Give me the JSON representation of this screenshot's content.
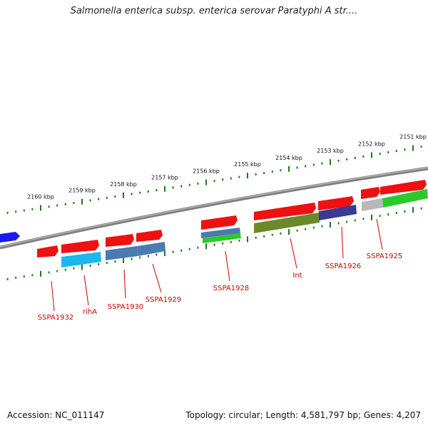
{
  "title": "Salmonella enterica subsp. enterica serovar Paratyphi A str....",
  "footer": {
    "accession": "Accession: NC_011147",
    "info": "Topology: circular; Length: 4,581,797 bp; Genes: 4,207"
  },
  "colors": {
    "backbone": "#808080",
    "ticks": "#1a7a1a",
    "label": "#cc0000",
    "gene_red": "#ee1111",
    "gene_blue": "#1a1aee",
    "cyan": "#1ab8ee",
    "steelblue": "#4a7ab0",
    "olive": "#6a8a2a",
    "indigo": "#3a3a90",
    "green": "#2aca2a",
    "grey": "#b8b8b8"
  },
  "scale_labels": [
    "2160 kbp",
    "2159 kbp",
    "2158 kbp",
    "2157 kbp",
    "2156 kbp",
    "2155 kbp",
    "2154 kbp",
    "2153 kbp",
    "2152 kbp",
    "2151 kbp"
  ],
  "gene_labels": [
    "SSPA1932",
    "rihA",
    "SSPA1930",
    "SSPA1929",
    "SSPA1928",
    "Int",
    "SSPA1926",
    "SSPA1925"
  ]
}
